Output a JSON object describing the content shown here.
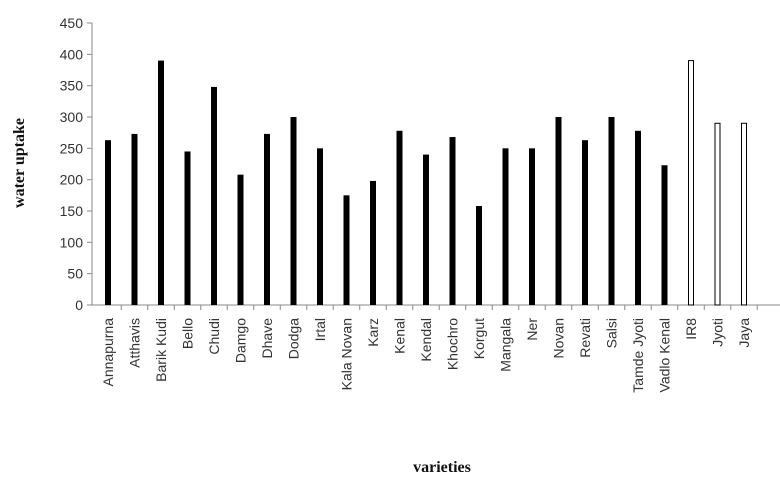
{
  "chart_data": {
    "type": "bar",
    "xlabel": "varieties",
    "ylabel": "water uptake",
    "ylim": [
      0,
      450
    ],
    "yticks": [
      0,
      50,
      100,
      150,
      200,
      250,
      300,
      350,
      400,
      450
    ],
    "grid": false,
    "categories": [
      "Annapurna",
      "Atthavis",
      "Barik Kudi",
      "Bello",
      "Chudi",
      "Damgo",
      "Dhave",
      "Dodga",
      "Irtal",
      "Kala Novan",
      "Karz",
      "Kenal",
      "Kendal",
      "Khochro",
      "Korgut",
      "Mangala",
      "Ner",
      "Novan",
      "Revati",
      "Salsi",
      "Tamde Jyoti",
      "Vadlo Kenal",
      "IR8",
      "Jyoti",
      "Jaya"
    ],
    "values": [
      263,
      273,
      390,
      245,
      348,
      208,
      273,
      300,
      250,
      175,
      198,
      278,
      240,
      268,
      158,
      250,
      250,
      300,
      263,
      300,
      278,
      223,
      390,
      290,
      290
    ],
    "bar_styles": [
      "filled",
      "filled",
      "filled",
      "filled",
      "filled",
      "filled",
      "filled",
      "filled",
      "filled",
      "filled",
      "filled",
      "filled",
      "filled",
      "filled",
      "filled",
      "filled",
      "filled",
      "filled",
      "filled",
      "filled",
      "filled",
      "filled",
      "hollow",
      "hollow",
      "hollow"
    ],
    "colors": {
      "filled": "#000000",
      "hollow_fill": "#ffffff",
      "hollow_stroke": "#000000",
      "axis": "#888888"
    }
  }
}
